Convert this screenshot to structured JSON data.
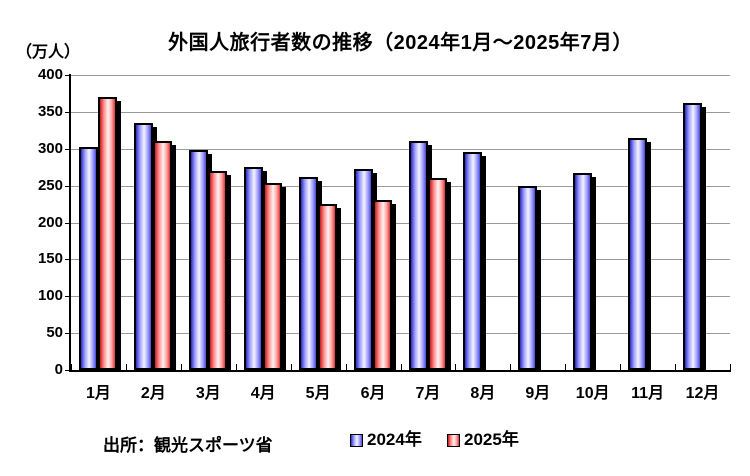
{
  "chart_data": {
    "type": "bar",
    "title": "外国人旅行者数の推移（2024年1月～2025年7月）",
    "ylabel": "（万人）",
    "source": "出所：観光スポーツ省",
    "categories": [
      "1月",
      "2月",
      "3月",
      "4月",
      "5月",
      "6月",
      "7月",
      "8月",
      "9月",
      "10月",
      "11月",
      "12月"
    ],
    "series": [
      {
        "name": "2024年",
        "color": "#9999ff",
        "values": [
          303,
          335,
          298,
          275,
          262,
          273,
          310,
          295,
          250,
          267,
          314,
          362
        ]
      },
      {
        "name": "2025年",
        "color": "#ff8080",
        "values": [
          370,
          311,
          270,
          253,
          225,
          230,
          260,
          null,
          null,
          null,
          null,
          null
        ]
      }
    ],
    "ylim": [
      0,
      400
    ],
    "ytick_step": 50,
    "yticklabels": [
      "0",
      "50",
      "100",
      "150",
      "200",
      "250",
      "300",
      "350",
      "400"
    ],
    "grid": true,
    "legend_position": "bottom-center"
  }
}
